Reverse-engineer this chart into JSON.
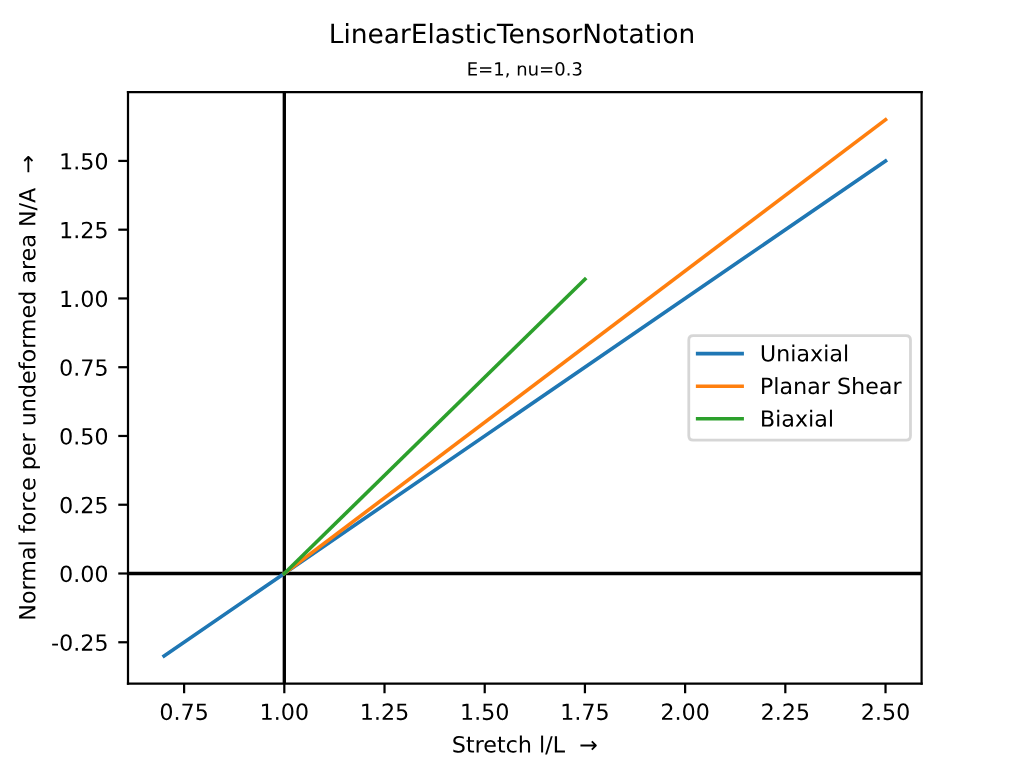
{
  "chart_data": {
    "type": "line",
    "title": "LinearElasticTensorNotation",
    "subtitle": "E=1, nu=0.3",
    "xlabel": "Stretch l/L  →",
    "ylabel": "Normal force per undeformed area N/A  →",
    "series": [
      {
        "name": "Uniaxial",
        "color": "#1f77b4",
        "x": [
          0.7,
          1.0,
          2.5
        ],
        "values": [
          -0.3,
          0.0,
          1.5
        ]
      },
      {
        "name": "Planar Shear",
        "color": "#ff7f0e",
        "x": [
          1.0,
          2.5
        ],
        "values": [
          0.0,
          1.65
        ]
      },
      {
        "name": "Biaxial",
        "color": "#2ca02c",
        "x": [
          1.0,
          1.75
        ],
        "values": [
          0.0,
          1.07
        ]
      }
    ],
    "xlim": [
      0.61,
      2.59
    ],
    "ylim": [
      -0.4,
      1.75
    ],
    "xticks": [
      0.75,
      {
        "value": 1.0,
        "label": "1.00"
      },
      1.25,
      {
        "value": 1.5,
        "label": "1.50"
      },
      1.75,
      {
        "value": 2.0,
        "label": "2.00"
      },
      2.25,
      {
        "value": 2.5,
        "label": "2.50"
      }
    ],
    "yticks": [
      -0.25,
      {
        "value": 0.0,
        "label": "0.00"
      },
      0.25,
      {
        "value": 0.5,
        "label": "0.50"
      },
      0.75,
      {
        "value": 1.0,
        "label": "1.00"
      },
      1.25,
      {
        "value": 1.5,
        "label": "1.50"
      }
    ],
    "ref_lines": [
      {
        "axis": "x",
        "value": 1.0,
        "color": "#000000"
      },
      {
        "axis": "y",
        "value": 0.0,
        "color": "#000000"
      }
    ],
    "legend": "center right",
    "grid": false,
    "line_style": "solid",
    "marker": "none"
  }
}
